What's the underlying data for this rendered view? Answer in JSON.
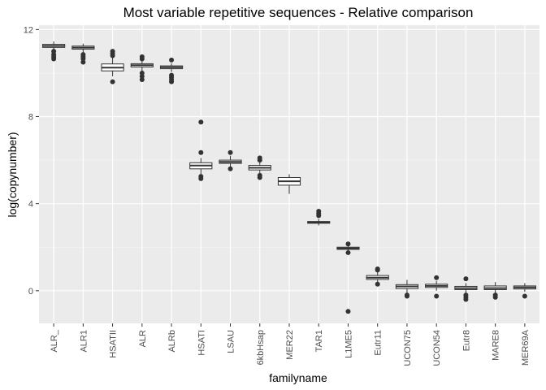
{
  "chart_data": {
    "type": "boxplot",
    "title": "Most variable repetitive sequences - Relative comparison",
    "xlabel": "familyname",
    "ylabel": "log(copynumber)",
    "ylim": [
      -1.5,
      12.2
    ],
    "yticks": [
      0,
      4,
      8,
      12
    ],
    "grid": true,
    "background": "#ebebeb",
    "box_fill": "#ffffff",
    "box_stroke": "#333333",
    "categories": [
      "ALR_",
      "ALR1",
      "HSATII",
      "ALR",
      "ALRb",
      "HSATI",
      "LSAU",
      "6kbHsap",
      "MER22",
      "TAR1",
      "L1ME5",
      "Eutr11",
      "UCON75",
      "UCON54",
      "Eutr8",
      "MARE8",
      "MER69A"
    ],
    "boxes": [
      {
        "whisker_low": 10.9,
        "q1": 11.18,
        "median": 11.25,
        "q3": 11.32,
        "whisker_high": 11.45,
        "outliers": [
          10.65,
          10.75,
          10.85,
          11.0
        ]
      },
      {
        "whisker_low": 10.95,
        "q1": 11.1,
        "median": 11.17,
        "q3": 11.24,
        "whisker_high": 11.35,
        "outliers": [
          10.5,
          10.65,
          10.75,
          10.85
        ]
      },
      {
        "whisker_low": 9.85,
        "q1": 10.1,
        "median": 10.25,
        "q3": 10.42,
        "whisker_high": 10.75,
        "outliers": [
          9.6,
          10.8,
          10.9,
          11.0
        ]
      },
      {
        "whisker_low": 10.1,
        "q1": 10.28,
        "median": 10.36,
        "q3": 10.43,
        "whisker_high": 10.6,
        "outliers": [
          9.7,
          9.85,
          10.0,
          10.65,
          10.75
        ]
      },
      {
        "whisker_low": 10.05,
        "q1": 10.2,
        "median": 10.27,
        "q3": 10.33,
        "whisker_high": 10.45,
        "outliers": [
          9.6,
          9.7,
          9.8,
          9.9,
          10.6
        ]
      },
      {
        "whisker_low": 5.35,
        "q1": 5.6,
        "median": 5.75,
        "q3": 5.88,
        "whisker_high": 6.1,
        "outliers": [
          5.15,
          5.25,
          6.35,
          7.75
        ]
      },
      {
        "whisker_low": 5.7,
        "q1": 5.85,
        "median": 5.92,
        "q3": 6.0,
        "whisker_high": 6.2,
        "outliers": [
          5.6,
          6.35
        ]
      },
      {
        "whisker_low": 5.35,
        "q1": 5.55,
        "median": 5.65,
        "q3": 5.76,
        "whisker_high": 5.95,
        "outliers": [
          5.2,
          5.3,
          6.0,
          6.1
        ]
      },
      {
        "whisker_low": 4.45,
        "q1": 4.85,
        "median": 5.03,
        "q3": 5.2,
        "whisker_high": 5.35,
        "outliers": []
      },
      {
        "whisker_low": 3.0,
        "q1": 3.1,
        "median": 3.14,
        "q3": 3.18,
        "whisker_high": 3.3,
        "outliers": [
          3.45,
          3.55,
          3.65
        ]
      },
      {
        "whisker_low": 1.85,
        "q1": 1.9,
        "median": 1.95,
        "q3": 2.0,
        "whisker_high": 2.1,
        "outliers": [
          -0.95,
          1.75,
          2.15
        ]
      },
      {
        "whisker_low": 0.4,
        "q1": 0.52,
        "median": 0.6,
        "q3": 0.7,
        "whisker_high": 0.85,
        "outliers": [
          0.3,
          0.95,
          1.0
        ]
      },
      {
        "whisker_low": -0.1,
        "q1": 0.1,
        "median": 0.2,
        "q3": 0.28,
        "whisker_high": 0.5,
        "outliers": [
          -0.2,
          -0.25
        ]
      },
      {
        "whisker_low": 0.0,
        "q1": 0.15,
        "median": 0.22,
        "q3": 0.3,
        "whisker_high": 0.45,
        "outliers": [
          -0.25,
          0.6
        ]
      },
      {
        "whisker_low": -0.1,
        "q1": 0.05,
        "median": 0.12,
        "q3": 0.2,
        "whisker_high": 0.35,
        "outliers": [
          -0.4,
          -0.3,
          -0.2,
          0.55
        ]
      },
      {
        "whisker_low": -0.1,
        "q1": 0.05,
        "median": 0.12,
        "q3": 0.22,
        "whisker_high": 0.4,
        "outliers": [
          -0.3,
          -0.2
        ]
      },
      {
        "whisker_low": -0.05,
        "q1": 0.08,
        "median": 0.15,
        "q3": 0.22,
        "whisker_high": 0.35,
        "outliers": [
          -0.25
        ]
      }
    ]
  }
}
